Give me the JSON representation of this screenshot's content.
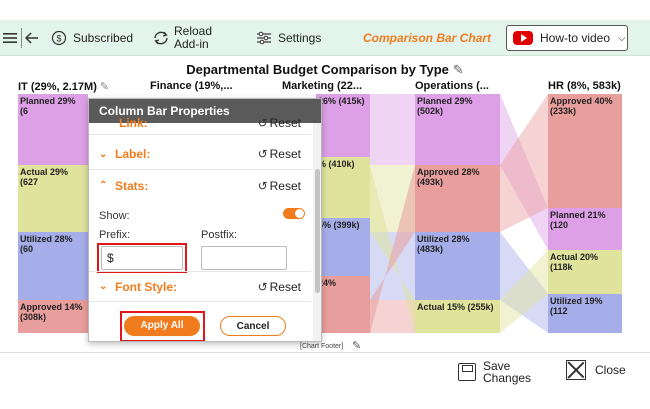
{
  "toolbar": {
    "hamburger_icon": "hamburger-icon",
    "back_icon": "back-arrow-icon",
    "subscribed_label": "Subscribed",
    "reload_line1": "Reload",
    "reload_line2": "Add-in",
    "settings_label": "Settings",
    "app_title": "Comparison Bar Chart",
    "howto_label": "How-to video"
  },
  "chart": {
    "title": "Departmental Budget Comparison by Type",
    "footer": "[Chart Footer]",
    "columns": [
      {
        "header": "IT (29%, 2.17M)",
        "segments": [
          {
            "label": "Planned 29% (6",
            "color": "#dda0e6"
          },
          {
            "label": "Actual 29% (627",
            "color": "#dfe39c"
          },
          {
            "label": "Utilized 28% (60",
            "color": "#a6aee9"
          },
          {
            "label": "Approved 14%",
            "label2": "(308k)",
            "color": "#e89e9c"
          }
        ]
      },
      {
        "header": "Finance (19%,...",
        "segments": []
      },
      {
        "header": "Marketing (22...",
        "segments": [
          {
            "label": "26% (415k)",
            "color": "#dda0e6"
          },
          {
            "label": "% (410k)",
            "color": "#dfe39c"
          },
          {
            "label": "5% (399k)",
            "color": "#a6aee9"
          },
          {
            "label": "24%",
            "color": "#e89e9c"
          }
        ]
      },
      {
        "header": "Operations (...",
        "segments": [
          {
            "label": "Planned 29% (502k)",
            "color": "#dda0e6"
          },
          {
            "label": "Approved 28%",
            "label2": "(493k)",
            "color": "#e89e9c"
          },
          {
            "label": "Utilized 28% (483k)",
            "color": "#a6aee9"
          },
          {
            "label": "Actual 15% (255k)",
            "color": "#dfe39c"
          }
        ]
      },
      {
        "header": "HR (8%, 583k)",
        "segments": [
          {
            "label": "Approved 40%",
            "label2": "(233k)",
            "color": "#e89e9c"
          },
          {
            "label": "Planned 21% (120",
            "color": "#dda0e6"
          },
          {
            "label": "Actual 20% (118k",
            "color": "#dfe39c"
          },
          {
            "label": "Utilized 19% (112",
            "color": "#a6aee9"
          }
        ]
      }
    ]
  },
  "panel": {
    "title": "Column Bar Properties",
    "link_label": "Link:",
    "label_label": "Label:",
    "stats_label": "Stats:",
    "font_style_label": "Font Style:",
    "reset_label": "Reset",
    "show_label": "Show:",
    "show_on": true,
    "prefix_label": "Prefix:",
    "prefix_value": "$",
    "postfix_label": "Postfix:",
    "postfix_value": "",
    "apply_label": "Apply All",
    "cancel_label": "Cancel"
  },
  "footer_bar": {
    "save_line1": "Save",
    "save_line2": "Changes",
    "close_label": "Close"
  },
  "colors": {
    "accent": "#f07c1e",
    "highlight": "#e0161b",
    "toolbar_bg": "#e3f4ec",
    "planned": "#dda0e6",
    "actual": "#dfe39c",
    "utilized": "#a6aee9",
    "approved": "#e89e9c"
  }
}
